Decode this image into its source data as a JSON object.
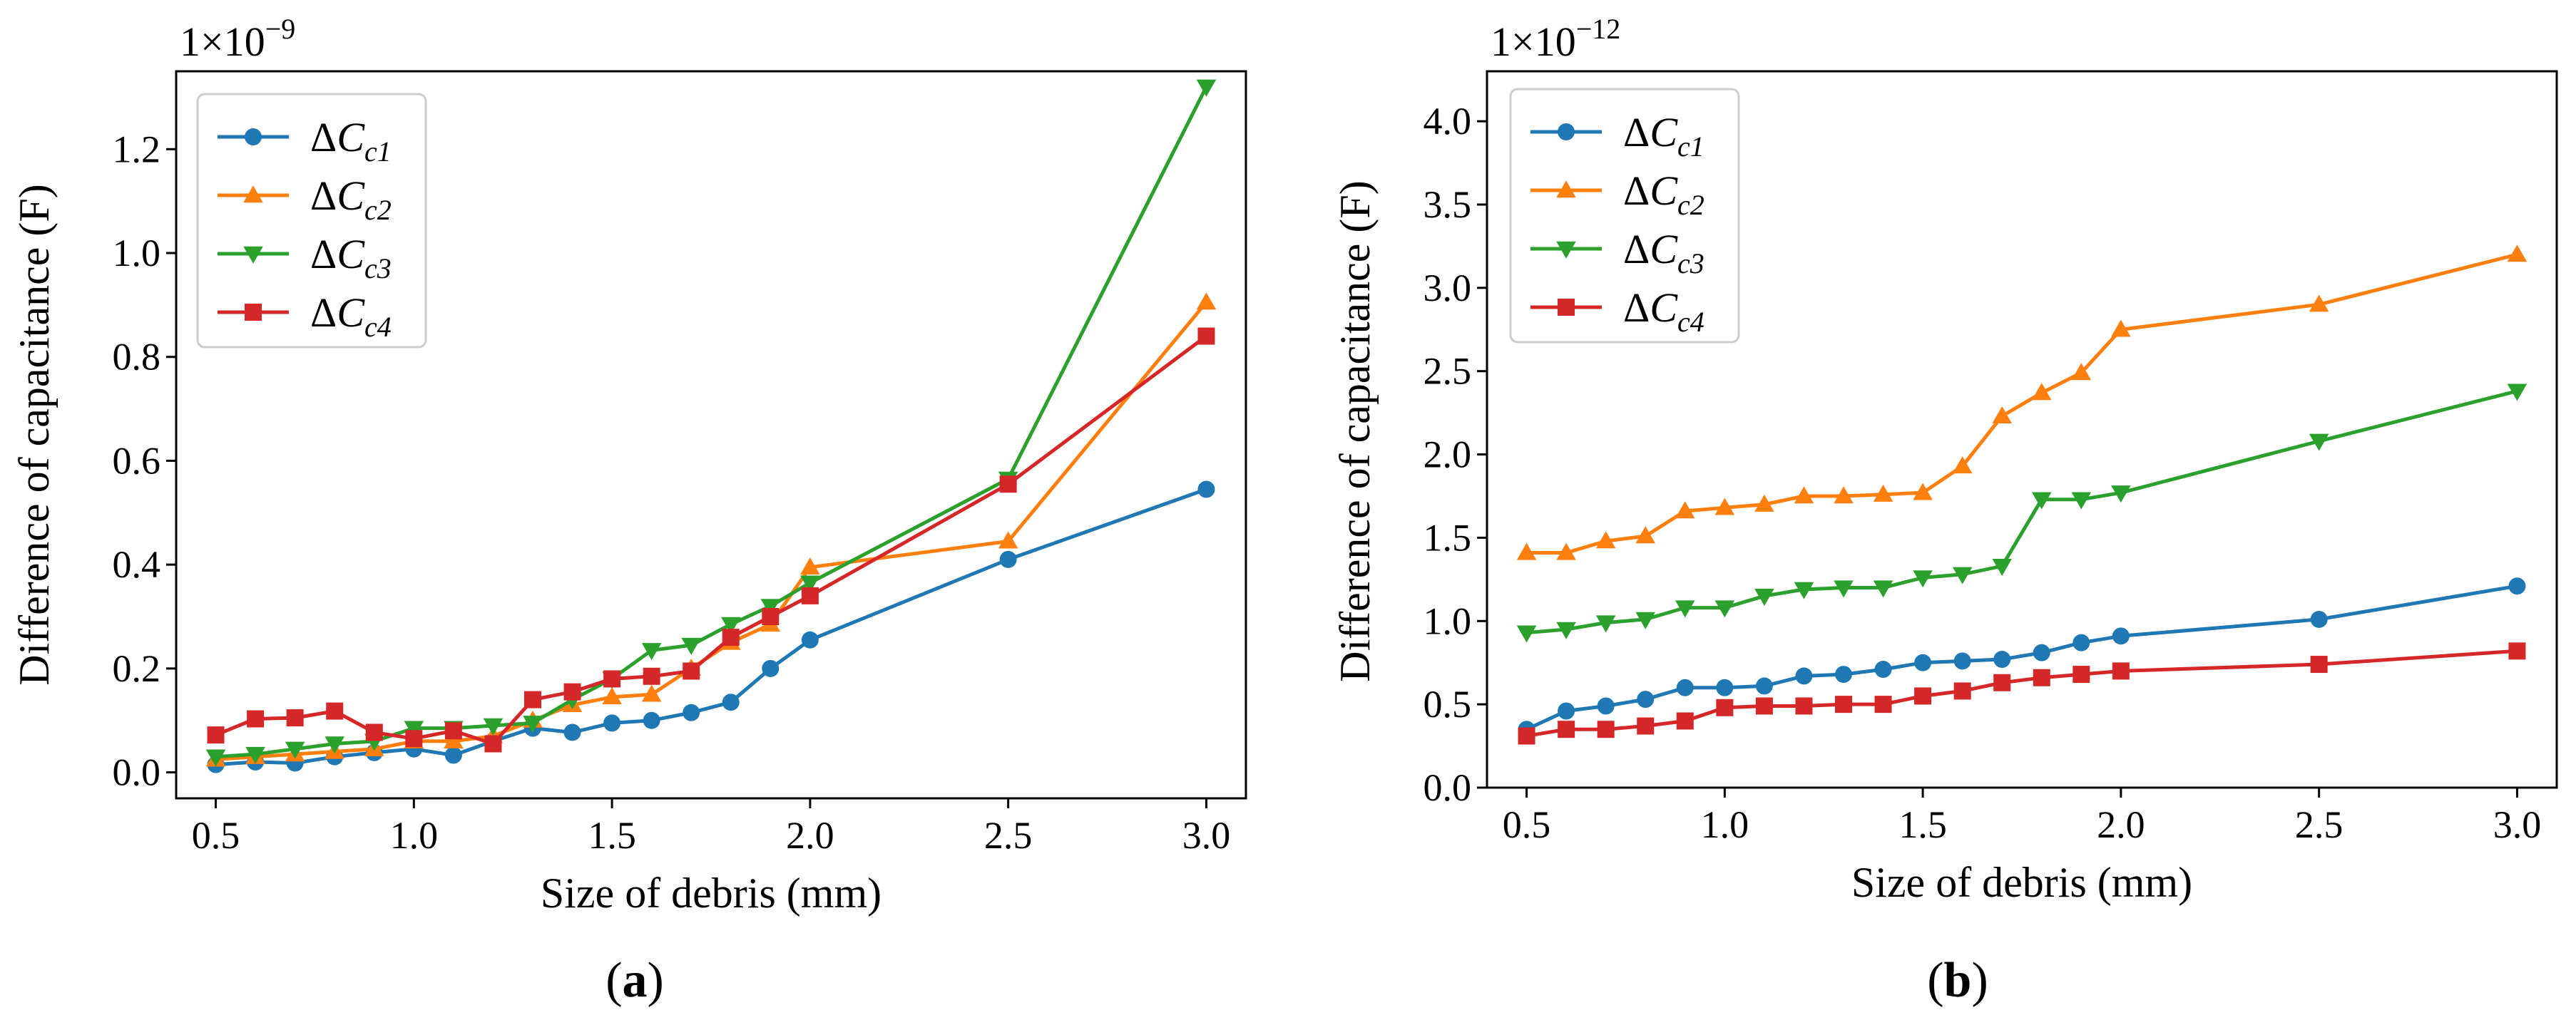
{
  "chart_data": [
    {
      "type": "line",
      "panel": "a",
      "caption_letter": "a",
      "multiplier": {
        "base": "1×10",
        "exponent": "−9"
      },
      "xlabel": "Size of debris (mm)",
      "ylabel": "Difference of capacitance (F)",
      "xlim": [
        0.4,
        3.1
      ],
      "ylim": [
        -0.05,
        1.35
      ],
      "xticks": [
        0.5,
        1.0,
        1.5,
        2.0,
        2.5,
        3.0
      ],
      "xtick_labels": [
        "0.5",
        "1.0",
        "1.5",
        "2.0",
        "2.5",
        "3.0"
      ],
      "yticks": [
        0.0,
        0.2,
        0.4,
        0.6,
        0.8,
        1.0,
        1.2
      ],
      "ytick_labels": [
        "0.0",
        "0.2",
        "0.4",
        "0.6",
        "0.8",
        "1.0",
        "1.2"
      ],
      "legend_position": "upper-left",
      "series": [
        {
          "name": "ΔC",
          "sub": "c1",
          "color": "#1f77b4",
          "marker": "circle",
          "x": [
            0.5,
            0.6,
            0.7,
            0.8,
            0.9,
            1.0,
            1.1,
            1.2,
            1.3,
            1.4,
            1.5,
            1.6,
            1.7,
            1.8,
            1.9,
            2.0,
            2.5,
            3.0
          ],
          "y": [
            0.015,
            0.02,
            0.018,
            0.03,
            0.038,
            0.045,
            0.033,
            0.06,
            0.085,
            0.077,
            0.095,
            0.1,
            0.115,
            0.135,
            0.2,
            0.255,
            0.41,
            0.545
          ]
        },
        {
          "name": "ΔC",
          "sub": "c2",
          "color": "#ff7f0e",
          "marker": "triangle-up",
          "x": [
            0.5,
            0.6,
            0.7,
            0.8,
            0.9,
            1.0,
            1.1,
            1.2,
            1.3,
            1.4,
            1.5,
            1.6,
            1.7,
            1.8,
            1.9,
            2.0,
            2.5,
            3.0
          ],
          "y": [
            0.025,
            0.03,
            0.035,
            0.04,
            0.045,
            0.06,
            0.06,
            0.07,
            0.1,
            0.13,
            0.145,
            0.15,
            0.2,
            0.25,
            0.285,
            0.395,
            0.445,
            0.905
          ]
        },
        {
          "name": "ΔC",
          "sub": "c3",
          "color": "#2ca02c",
          "marker": "triangle-down",
          "x": [
            0.5,
            0.6,
            0.7,
            0.8,
            0.9,
            1.0,
            1.1,
            1.2,
            1.3,
            1.4,
            1.5,
            1.6,
            1.7,
            1.8,
            1.9,
            2.0,
            2.5,
            3.0
          ],
          "y": [
            0.03,
            0.035,
            0.045,
            0.055,
            0.06,
            0.085,
            0.085,
            0.09,
            0.095,
            0.14,
            0.18,
            0.235,
            0.245,
            0.285,
            0.32,
            0.365,
            0.565,
            1.32
          ]
        },
        {
          "name": "ΔC",
          "sub": "c4",
          "color": "#d62728",
          "marker": "square",
          "x": [
            0.5,
            0.6,
            0.7,
            0.8,
            0.9,
            1.0,
            1.1,
            1.2,
            1.3,
            1.4,
            1.5,
            1.6,
            1.7,
            1.8,
            1.9,
            2.0,
            2.5,
            3.0
          ],
          "y": [
            0.072,
            0.103,
            0.105,
            0.118,
            0.077,
            0.065,
            0.08,
            0.055,
            0.14,
            0.155,
            0.18,
            0.185,
            0.195,
            0.26,
            0.3,
            0.34,
            0.555,
            0.84
          ]
        }
      ]
    },
    {
      "type": "line",
      "panel": "b",
      "caption_letter": "b",
      "multiplier": {
        "base": "1×10",
        "exponent": "−12"
      },
      "xlabel": "Size of debris (mm)",
      "ylabel": "Difference of capacitance (F)",
      "xlim": [
        0.4,
        3.1
      ],
      "ylim": [
        0.0,
        4.3
      ],
      "xticks": [
        0.5,
        1.0,
        1.5,
        2.0,
        2.5,
        3.0
      ],
      "xtick_labels": [
        "0.5",
        "1.0",
        "1.5",
        "2.0",
        "2.5",
        "3.0"
      ],
      "yticks": [
        0.0,
        0.5,
        1.0,
        1.5,
        2.0,
        2.5,
        3.0,
        3.5,
        4.0
      ],
      "ytick_labels": [
        "0.0",
        "0.5",
        "1.0",
        "1.5",
        "2.0",
        "2.5",
        "3.0",
        "3.5",
        "4.0"
      ],
      "legend_position": "upper-left",
      "series": [
        {
          "name": "ΔC",
          "sub": "c1",
          "color": "#1f77b4",
          "marker": "circle",
          "x": [
            0.5,
            0.6,
            0.7,
            0.8,
            0.9,
            1.0,
            1.1,
            1.2,
            1.3,
            1.4,
            1.5,
            1.6,
            1.7,
            1.8,
            1.9,
            2.0,
            2.5,
            3.0
          ],
          "y": [
            0.35,
            0.46,
            0.49,
            0.53,
            0.6,
            0.6,
            0.61,
            0.67,
            0.68,
            0.71,
            0.75,
            0.76,
            0.77,
            0.81,
            0.87,
            0.91,
            1.01,
            1.21
          ]
        },
        {
          "name": "ΔC",
          "sub": "c2",
          "color": "#ff7f0e",
          "marker": "triangle-up",
          "x": [
            0.5,
            0.6,
            0.7,
            0.8,
            0.9,
            1.0,
            1.1,
            1.2,
            1.3,
            1.4,
            1.5,
            1.6,
            1.7,
            1.8,
            1.9,
            2.0,
            2.5,
            3.0
          ],
          "y": [
            1.41,
            1.41,
            1.48,
            1.51,
            1.66,
            1.68,
            1.7,
            1.75,
            1.75,
            1.76,
            1.77,
            1.93,
            2.23,
            2.37,
            2.49,
            2.75,
            2.9,
            3.2
          ]
        },
        {
          "name": "ΔC",
          "sub": "c3",
          "color": "#2ca02c",
          "marker": "triangle-down",
          "x": [
            0.5,
            0.6,
            0.7,
            0.8,
            0.9,
            1.0,
            1.1,
            1.2,
            1.3,
            1.4,
            1.5,
            1.6,
            1.7,
            1.8,
            1.9,
            2.0,
            2.5,
            3.0
          ],
          "y": [
            0.93,
            0.95,
            0.99,
            1.01,
            1.08,
            1.08,
            1.15,
            1.19,
            1.2,
            1.2,
            1.26,
            1.28,
            1.33,
            1.73,
            1.73,
            1.77,
            2.08,
            2.38
          ]
        },
        {
          "name": "ΔC",
          "sub": "c4",
          "color": "#d62728",
          "marker": "square",
          "x": [
            0.5,
            0.6,
            0.7,
            0.8,
            0.9,
            1.0,
            1.1,
            1.2,
            1.3,
            1.4,
            1.5,
            1.6,
            1.7,
            1.8,
            1.9,
            2.0,
            2.5,
            3.0
          ],
          "y": [
            0.31,
            0.35,
            0.35,
            0.37,
            0.4,
            0.48,
            0.49,
            0.49,
            0.5,
            0.5,
            0.55,
            0.58,
            0.63,
            0.66,
            0.68,
            0.7,
            0.74,
            0.82
          ]
        }
      ]
    }
  ]
}
